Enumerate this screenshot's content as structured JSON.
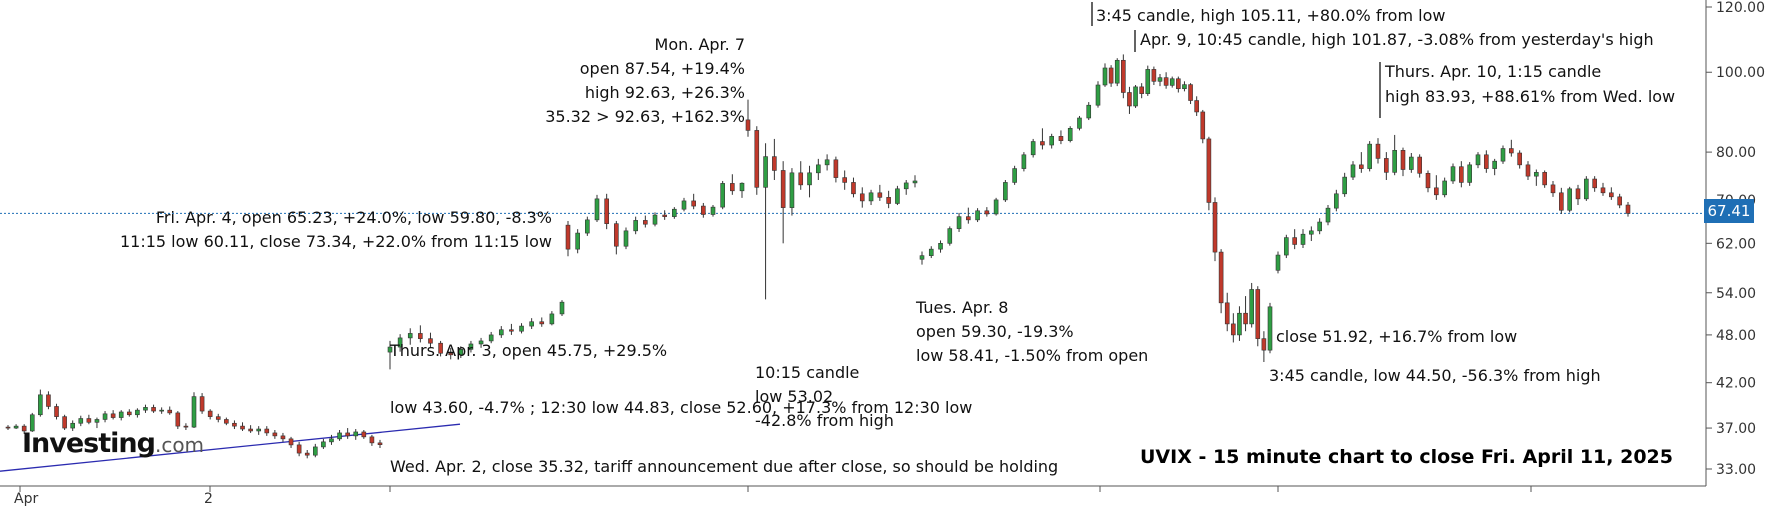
{
  "chart_data": {
    "type": "candlestick",
    "title": "UVIX - 15 minute chart to close Fri. April 11, 2025",
    "yscale": "log",
    "ylim": [
      32,
      121
    ],
    "y_ticks": [
      "120.00",
      "100.00",
      "80.00",
      "70.00",
      "62.00",
      "54.00",
      "48.00",
      "42.00",
      "37.00",
      "33.00"
    ],
    "x_tick_labels": [
      "Apr",
      "2"
    ],
    "last_price": "67.41",
    "last_price_value": 67.41,
    "trendline": {
      "from": 32.8,
      "to": 37.4
    },
    "annotations": {
      "wed_apr2": "Wed. Apr. 2, close 35.32, tariff announcement due after close, so should be holding",
      "thu_apr3_l1": "Thurs. Apr. 3, open 45.75, +29.5%",
      "thu_apr3_l2": "low 43.60, -4.7% ; 12:30 low 44.83, close 52.60, +17.3% from 12:30 low",
      "fri_apr4_l1": "Fri. Apr. 4, open 65.23, +24.0%, low 59.80, -8.3%",
      "fri_apr4_l2": "11:15 low 60.11, close 73.34, +22.0% from 11:15 low",
      "mon_apr7_l1": "Mon. Apr. 7",
      "mon_apr7_l2": "open 87.54, +19.4%",
      "mon_apr7_l3": "high 92.63, +26.3%",
      "mon_apr7_l4": "35.32 > 92.63, +162.3%",
      "c1015_l1": "10:15 candle",
      "c1015_l2": "low 53.02",
      "c1015_l3": "-42.8% from high",
      "tue_apr8_l1": "Tues. Apr. 8",
      "tue_apr8_l2": "open 59.30, -19.3%",
      "tue_apr8_l3": "low 58.41, -1.50% from open",
      "c345_high": "3:45 candle, high 105.11, +80.0% from low",
      "apr9_1045": "Apr. 9, 10:45 candle, high 101.87, -3.08% from yesterday's high",
      "thu_apr10_l1": "Thurs. Apr. 10, 1:15 candle",
      "thu_apr10_l2": "high 83.93, +88.61% from Wed. low",
      "close_5192": "close 51.92, +16.7% from low",
      "c345_low": "3:45 candle, low 44.50, -56.3% from high"
    },
    "candles": [
      [
        37.1,
        37.3,
        36.8,
        37.0
      ],
      [
        37.0,
        37.4,
        36.9,
        37.2
      ],
      [
        37.2,
        37.4,
        36.4,
        36.7
      ],
      [
        36.7,
        38.6,
        36.6,
        38.4
      ],
      [
        38.4,
        41.2,
        38.2,
        40.6
      ],
      [
        40.6,
        41.0,
        39.0,
        39.3
      ],
      [
        39.3,
        39.6,
        37.9,
        38.2
      ],
      [
        38.2,
        38.4,
        36.8,
        37.0
      ],
      [
        37.0,
        37.8,
        36.7,
        37.5
      ],
      [
        37.5,
        38.3,
        37.2,
        38.0
      ],
      [
        38.0,
        38.4,
        37.4,
        37.6
      ],
      [
        37.6,
        38.1,
        37.0,
        37.9
      ],
      [
        37.9,
        38.8,
        37.6,
        38.5
      ],
      [
        38.5,
        38.9,
        37.9,
        38.1
      ],
      [
        38.1,
        38.9,
        37.8,
        38.7
      ],
      [
        38.7,
        39.0,
        38.2,
        38.4
      ],
      [
        38.4,
        39.1,
        38.1,
        38.9
      ],
      [
        38.9,
        39.5,
        38.6,
        39.2
      ],
      [
        39.2,
        39.5,
        38.6,
        38.8
      ],
      [
        38.8,
        39.2,
        38.5,
        38.9
      ],
      [
        38.9,
        39.3,
        38.4,
        38.6
      ],
      [
        38.6,
        38.8,
        36.9,
        37.2
      ],
      [
        37.2,
        37.5,
        36.8,
        37.1
      ],
      [
        37.1,
        40.9,
        37.0,
        40.4
      ],
      [
        40.4,
        40.8,
        38.5,
        38.8
      ],
      [
        38.8,
        39.0,
        37.9,
        38.2
      ],
      [
        38.2,
        38.5,
        37.6,
        37.9
      ],
      [
        37.9,
        38.1,
        37.3,
        37.5
      ],
      [
        37.5,
        37.8,
        36.9,
        37.2
      ],
      [
        37.2,
        37.6,
        36.7,
        36.9
      ],
      [
        36.9,
        37.3,
        36.5,
        36.7
      ],
      [
        36.7,
        37.2,
        36.3,
        36.9
      ],
      [
        36.9,
        37.2,
        36.2,
        36.5
      ],
      [
        36.5,
        36.8,
        35.9,
        36.2
      ],
      [
        36.2,
        36.5,
        35.6,
        35.9
      ],
      [
        35.9,
        36.1,
        35.0,
        35.3
      ],
      [
        35.3,
        35.6,
        34.2,
        34.5
      ],
      [
        34.5,
        34.8,
        34.0,
        34.3
      ],
      [
        34.3,
        35.4,
        34.1,
        35.1
      ],
      [
        35.1,
        35.9,
        34.9,
        35.6
      ],
      [
        35.6,
        36.3,
        35.3,
        35.9
      ],
      [
        35.9,
        36.8,
        35.7,
        36.5
      ],
      [
        36.5,
        37.0,
        35.9,
        36.2
      ],
      [
        36.2,
        36.9,
        35.8,
        36.6
      ],
      [
        36.6,
        36.8,
        35.9,
        36.1
      ],
      [
        36.1,
        36.3,
        35.2,
        35.5
      ],
      [
        35.5,
        35.8,
        35.0,
        35.32
      ],
      [
        45.75,
        47.2,
        43.6,
        46.4
      ],
      [
        46.4,
        48.1,
        45.8,
        47.6
      ],
      [
        47.6,
        48.9,
        46.7,
        48.2
      ],
      [
        48.2,
        49.3,
        47.0,
        47.5
      ],
      [
        47.5,
        48.3,
        46.3,
        46.9
      ],
      [
        46.9,
        47.2,
        45.2,
        45.6
      ],
      [
        45.6,
        46.3,
        44.83,
        45.4
      ],
      [
        45.4,
        46.5,
        45.0,
        46.1
      ],
      [
        46.1,
        47.2,
        45.7,
        46.8
      ],
      [
        46.8,
        47.6,
        46.3,
        47.2
      ],
      [
        47.2,
        48.4,
        46.9,
        48.0
      ],
      [
        48.0,
        49.2,
        47.6,
        48.7
      ],
      [
        48.7,
        49.5,
        48.0,
        48.5
      ],
      [
        48.5,
        49.6,
        48.2,
        49.2
      ],
      [
        49.2,
        50.3,
        48.8,
        49.8
      ],
      [
        49.8,
        50.4,
        49.1,
        49.5
      ],
      [
        49.5,
        51.3,
        49.3,
        50.9
      ],
      [
        50.9,
        52.9,
        50.6,
        52.6
      ],
      [
        65.23,
        66.0,
        59.8,
        61.0
      ],
      [
        61.0,
        64.5,
        60.3,
        63.8
      ],
      [
        63.8,
        66.8,
        63.3,
        66.2
      ],
      [
        66.2,
        71.0,
        65.8,
        70.2
      ],
      [
        70.2,
        71.2,
        64.5,
        65.5
      ],
      [
        65.5,
        66.0,
        60.11,
        61.5
      ],
      [
        61.5,
        64.8,
        61.0,
        64.2
      ],
      [
        64.2,
        66.8,
        63.6,
        66.1
      ],
      [
        66.1,
        67.0,
        64.8,
        65.4
      ],
      [
        65.4,
        67.6,
        65.0,
        67.1
      ],
      [
        67.1,
        68.0,
        66.2,
        66.8
      ],
      [
        66.8,
        68.6,
        66.4,
        68.2
      ],
      [
        68.2,
        70.4,
        67.8,
        69.8
      ],
      [
        69.8,
        71.2,
        68.2,
        68.8
      ],
      [
        68.8,
        69.4,
        66.6,
        67.2
      ],
      [
        67.2,
        69.0,
        66.8,
        68.6
      ],
      [
        68.6,
        73.8,
        68.2,
        73.3
      ],
      [
        73.3,
        75.2,
        71.0,
        71.8
      ],
      [
        71.8,
        73.5,
        70.4,
        73.34
      ],
      [
        87.54,
        92.63,
        83.5,
        85.0
      ],
      [
        85.0,
        86.0,
        71.0,
        72.5
      ],
      [
        72.5,
        82.0,
        53.02,
        79.0
      ],
      [
        79.0,
        83.0,
        74.0,
        76.0
      ],
      [
        76.0,
        78.0,
        62.0,
        68.5
      ],
      [
        68.5,
        76.5,
        67.0,
        75.5
      ],
      [
        75.5,
        78.0,
        72.0,
        73.0
      ],
      [
        73.0,
        77.0,
        70.5,
        75.5
      ],
      [
        75.5,
        78.5,
        74.0,
        77.2
      ],
      [
        77.2,
        79.5,
        76.0,
        78.3
      ],
      [
        78.3,
        79.0,
        73.5,
        74.5
      ],
      [
        74.5,
        76.0,
        72.0,
        73.5
      ],
      [
        73.5,
        74.5,
        70.5,
        71.2
      ],
      [
        71.2,
        72.5,
        68.5,
        69.8
      ],
      [
        69.8,
        72.0,
        69.0,
        71.4
      ],
      [
        71.4,
        73.0,
        69.8,
        70.5
      ],
      [
        70.5,
        71.8,
        68.4,
        69.3
      ],
      [
        69.3,
        72.8,
        69.0,
        72.2
      ],
      [
        72.2,
        74.0,
        71.0,
        73.4
      ],
      [
        73.4,
        75.0,
        72.5,
        73.8
      ],
      [
        59.3,
        60.6,
        58.41,
        59.9
      ],
      [
        59.9,
        61.5,
        59.5,
        61.0
      ],
      [
        61.0,
        62.5,
        60.4,
        62.0
      ],
      [
        62.0,
        65.0,
        61.6,
        64.6
      ],
      [
        64.6,
        67.5,
        64.0,
        66.8
      ],
      [
        66.8,
        68.5,
        65.5,
        66.2
      ],
      [
        66.2,
        68.4,
        65.8,
        67.9
      ],
      [
        67.9,
        68.6,
        66.8,
        67.3
      ],
      [
        67.3,
        70.4,
        67.0,
        70.0
      ],
      [
        70.0,
        74.0,
        69.6,
        73.5
      ],
      [
        73.5,
        77.0,
        73.0,
        76.4
      ],
      [
        76.4,
        80.0,
        75.8,
        79.4
      ],
      [
        79.4,
        83.0,
        78.8,
        82.4
      ],
      [
        82.4,
        85.5,
        80.6,
        81.6
      ],
      [
        81.6,
        84.2,
        80.8,
        83.6
      ],
      [
        83.6,
        85.0,
        81.8,
        82.6
      ],
      [
        82.6,
        86.0,
        82.2,
        85.5
      ],
      [
        85.5,
        88.5,
        85.0,
        88.0
      ],
      [
        88.0,
        92.0,
        87.5,
        91.2
      ],
      [
        91.2,
        97.5,
        90.6,
        96.5
      ],
      [
        96.5,
        102.5,
        96.0,
        101.2
      ],
      [
        101.2,
        102.0,
        96.0,
        97.0
      ],
      [
        97.0,
        104.0,
        96.2,
        103.4
      ],
      [
        103.4,
        105.11,
        93.0,
        94.5
      ],
      [
        94.5,
        96.0,
        89.0,
        91.0
      ],
      [
        91.0,
        96.5,
        90.5,
        96.0
      ],
      [
        96.0,
        97.0,
        93.0,
        94.2
      ],
      [
        94.2,
        101.87,
        93.6,
        100.8
      ],
      [
        100.8,
        101.6,
        96.5,
        97.5
      ],
      [
        97.5,
        99.5,
        96.2,
        98.5
      ],
      [
        98.5,
        100.0,
        95.5,
        96.4
      ],
      [
        96.4,
        98.8,
        95.8,
        98.2
      ],
      [
        98.2,
        98.8,
        94.5,
        95.5
      ],
      [
        95.5,
        97.5,
        94.8,
        96.6
      ],
      [
        96.6,
        97.0,
        91.5,
        92.4
      ],
      [
        92.4,
        93.5,
        88.5,
        89.5
      ],
      [
        89.5,
        90.0,
        82.0,
        83.0
      ],
      [
        83.0,
        83.5,
        68.0,
        69.5
      ],
      [
        69.5,
        70.5,
        59.0,
        60.5
      ],
      [
        60.5,
        61.0,
        51.0,
        52.5
      ],
      [
        52.5,
        54.0,
        48.5,
        49.5
      ],
      [
        49.5,
        51.0,
        47.0,
        48.0
      ],
      [
        48.0,
        52.0,
        47.2,
        51.0
      ],
      [
        51.0,
        53.5,
        48.5,
        49.5
      ],
      [
        49.5,
        55.5,
        49.0,
        54.5
      ],
      [
        54.5,
        55.0,
        46.5,
        47.5
      ],
      [
        47.5,
        48.5,
        44.5,
        46.0
      ],
      [
        46.0,
        52.5,
        45.6,
        51.92
      ],
      [
        57.5,
        60.6,
        57.0,
        60.0
      ],
      [
        60.0,
        63.5,
        59.5,
        63.0
      ],
      [
        63.0,
        64.5,
        61.0,
        61.8
      ],
      [
        61.8,
        64.5,
        61.2,
        63.6
      ],
      [
        63.6,
        65.0,
        62.4,
        64.2
      ],
      [
        64.2,
        66.5,
        63.6,
        65.8
      ],
      [
        65.8,
        69.0,
        65.2,
        68.4
      ],
      [
        68.4,
        72.0,
        67.8,
        71.2
      ],
      [
        71.2,
        75.5,
        70.6,
        74.6
      ],
      [
        74.6,
        78.0,
        74.0,
        77.2
      ],
      [
        77.2,
        80.0,
        75.5,
        76.4
      ],
      [
        76.4,
        82.5,
        75.8,
        81.8
      ],
      [
        81.8,
        83.2,
        77.5,
        78.6
      ],
      [
        78.6,
        80.0,
        74.0,
        75.6
      ],
      [
        75.6,
        83.93,
        75.0,
        80.4
      ],
      [
        80.4,
        81.0,
        74.8,
        76.2
      ],
      [
        76.2,
        79.8,
        75.5,
        78.9
      ],
      [
        78.9,
        79.5,
        74.5,
        75.4
      ],
      [
        75.4,
        76.0,
        71.5,
        72.4
      ],
      [
        72.4,
        75.0,
        70.0,
        71.0
      ],
      [
        71.0,
        74.5,
        70.5,
        73.8
      ],
      [
        73.8,
        77.5,
        73.2,
        76.8
      ],
      [
        76.8,
        78.0,
        72.5,
        73.5
      ],
      [
        73.5,
        77.8,
        72.8,
        77.2
      ],
      [
        77.2,
        80.0,
        76.5,
        79.4
      ],
      [
        79.4,
        80.4,
        75.5,
        76.4
      ],
      [
        76.4,
        78.5,
        75.0,
        78.0
      ],
      [
        78.0,
        81.5,
        77.4,
        80.8
      ],
      [
        80.8,
        82.8,
        79.0,
        79.8
      ],
      [
        79.8,
        80.4,
        76.4,
        77.2
      ],
      [
        77.2,
        78.0,
        74.0,
        74.8
      ],
      [
        74.8,
        76.2,
        72.8,
        75.6
      ],
      [
        75.6,
        76.0,
        72.4,
        73.0
      ],
      [
        73.0,
        73.8,
        70.6,
        71.4
      ],
      [
        71.4,
        72.4,
        67.3,
        68.0
      ],
      [
        68.0,
        72.6,
        67.6,
        72.2
      ],
      [
        72.2,
        73.0,
        69.0,
        70.2
      ],
      [
        70.2,
        74.8,
        69.8,
        74.2
      ],
      [
        74.2,
        74.8,
        71.6,
        72.4
      ],
      [
        72.4,
        73.4,
        70.8,
        71.4
      ],
      [
        71.4,
        72.5,
        70.0,
        70.6
      ],
      [
        70.6,
        71.2,
        68.4,
        69.0
      ],
      [
        69.0,
        69.6,
        66.8,
        67.41
      ]
    ]
  }
}
